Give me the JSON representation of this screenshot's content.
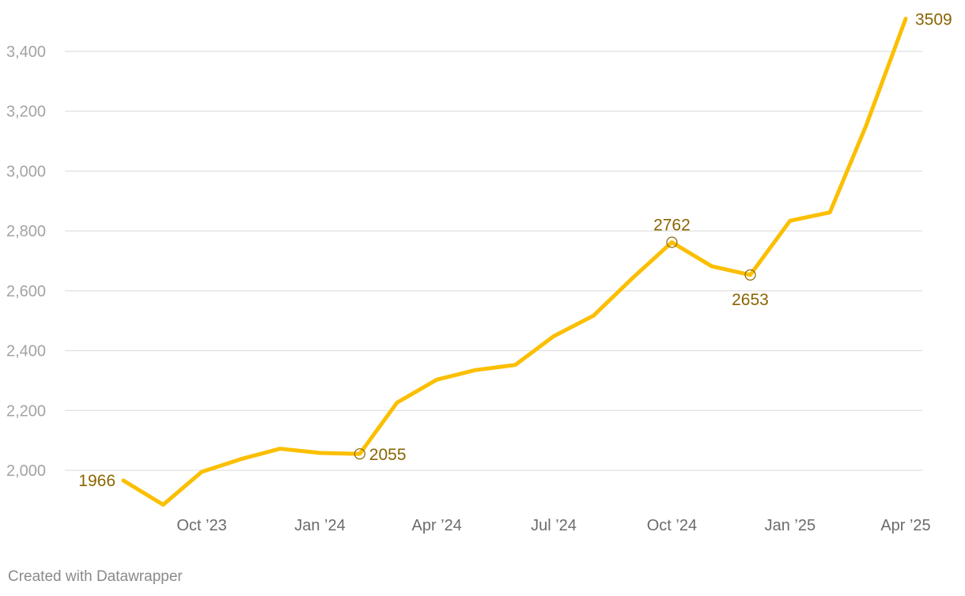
{
  "chart_data": {
    "type": "line",
    "title": "",
    "xlabel": "",
    "ylabel": "",
    "x": [
      "2023-08-01",
      "2023-09-01",
      "2023-10-01",
      "2023-11-01",
      "2023-12-01",
      "2024-01-01",
      "2024-02-01",
      "2024-03-01",
      "2024-04-01",
      "2024-05-01",
      "2024-06-01",
      "2024-07-01",
      "2024-08-01",
      "2024-09-01",
      "2024-10-01",
      "2024-11-01",
      "2024-12-01",
      "2025-01-01",
      "2025-02-01",
      "2025-03-01",
      "2025-04-01"
    ],
    "series": [
      {
        "name": "",
        "values": [
          1966,
          1885,
          1995,
          2038,
          2072,
          2058,
          2055,
          2226,
          2303,
          2335,
          2352,
          2448,
          2517,
          2645,
          2762,
          2682,
          2653,
          2834,
          2862,
          3150,
          3509
        ]
      }
    ],
    "ylim": [
      1880,
      3520
    ],
    "y_ticks": [
      2000,
      2200,
      2400,
      2600,
      2800,
      3000,
      3200,
      3400
    ],
    "y_tick_labels": [
      "2,000",
      "2,200",
      "2,400",
      "2,600",
      "2,800",
      "3,000",
      "3,200",
      "3,400"
    ],
    "x_ticks": [
      {
        "date": "2023-10-01",
        "label": "Oct ’23"
      },
      {
        "date": "2024-01-01",
        "label": "Jan ’24"
      },
      {
        "date": "2024-04-01",
        "label": "Apr ’24"
      },
      {
        "date": "2024-07-01",
        "label": "Jul ’24"
      },
      {
        "date": "2024-10-01",
        "label": "Oct ’24"
      },
      {
        "date": "2025-01-01",
        "label": "Jan ’25"
      },
      {
        "date": "2025-04-01",
        "label": "Apr ’25"
      }
    ],
    "annotations": [
      {
        "index": 0,
        "label": "1966",
        "circle": false,
        "position": "left"
      },
      {
        "index": 6,
        "label": "2055",
        "circle": true,
        "position": "right"
      },
      {
        "index": 14,
        "label": "2762",
        "circle": true,
        "position": "above"
      },
      {
        "index": 16,
        "label": "2653",
        "circle": true,
        "position": "below"
      },
      {
        "index": 20,
        "label": "3509",
        "circle": false,
        "position": "right"
      }
    ],
    "grid": true,
    "legend": "none"
  },
  "colors": {
    "line": "#fbbf00",
    "annotation_text": "#8a6400",
    "grid": "#d9d9d9"
  },
  "footer": {
    "credit": "Created with Datawrapper"
  }
}
